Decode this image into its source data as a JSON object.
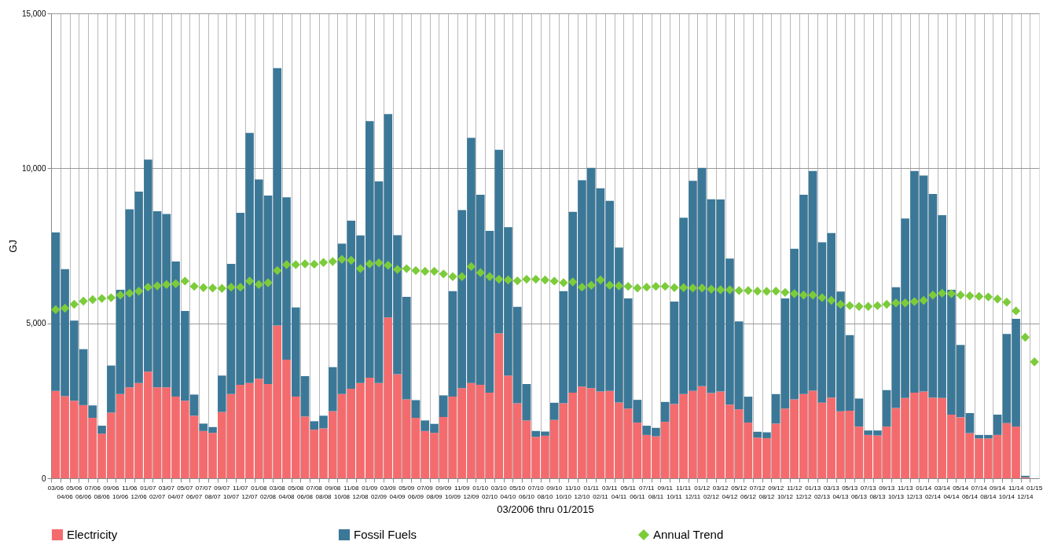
{
  "chart_data": {
    "type": "bar",
    "stacked": true,
    "xlabel": "03/2006 thru 01/2015",
    "ylabel": "GJ",
    "categories": [
      "03/06",
      "04/06",
      "05/06",
      "06/06",
      "07/06",
      "08/06",
      "09/06",
      "10/06",
      "11/06",
      "12/06",
      "01/07",
      "02/07",
      "03/07",
      "04/07",
      "05/07",
      "06/07",
      "07/07",
      "08/07",
      "09/07",
      "10/07",
      "11/07",
      "12/07",
      "01/08",
      "02/08",
      "03/08",
      "04/08",
      "05/08",
      "06/08",
      "07/08",
      "08/08",
      "09/08",
      "10/08",
      "11/08",
      "12/08",
      "01/09",
      "02/09",
      "03/09",
      "04/09",
      "05/09",
      "06/09",
      "07/09",
      "08/09",
      "09/09",
      "10/09",
      "11/09",
      "12/09",
      "01/10",
      "02/10",
      "03/10",
      "04/10",
      "05/10",
      "06/10",
      "07/10",
      "08/10",
      "09/10",
      "10/10",
      "11/10",
      "12/10",
      "01/11",
      "02/11",
      "03/11",
      "04/11",
      "05/11",
      "06/11",
      "07/11",
      "08/11",
      "09/11",
      "10/11",
      "11/11",
      "12/11",
      "01/12",
      "02/12",
      "03/12",
      "04/12",
      "05/12",
      "06/12",
      "07/12",
      "08/12",
      "09/12",
      "10/12",
      "11/12",
      "12/12",
      "01/13",
      "02/13",
      "03/13",
      "04/13",
      "05/13",
      "06/13",
      "07/13",
      "08/13",
      "09/13",
      "10/13",
      "11/13",
      "12/13",
      "01/14",
      "02/14",
      "03/14",
      "04/14",
      "05/14",
      "06/14",
      "07/14",
      "08/14",
      "09/14",
      "10/14",
      "11/14",
      "12/14",
      "01/15"
    ],
    "series": [
      {
        "name": "Electricity",
        "color": "#f46b6e",
        "values": [
          2818,
          2650,
          2504,
          2360,
          1950,
          1440,
          2120,
          2716,
          2930,
          3074,
          3441,
          2930,
          2930,
          2632,
          2504,
          2018,
          1525,
          1465,
          2138,
          2716,
          3015,
          3074,
          3211,
          3040,
          4931,
          3824,
          2632,
          1993,
          1567,
          1610,
          2163,
          2716,
          2887,
          3074,
          3245,
          3074,
          5187,
          3355,
          2547,
          1950,
          1525,
          1465,
          1976,
          2632,
          2905,
          3074,
          3015,
          2759,
          4676,
          3313,
          2419,
          1865,
          1337,
          1371,
          1882,
          2419,
          2759,
          2956,
          2905,
          2802,
          2819,
          2444,
          2248,
          1797,
          1397,
          1354,
          1822,
          2393,
          2716,
          2819,
          2973,
          2750,
          2802,
          2376,
          2223,
          1797,
          1311,
          1294,
          1763,
          2248,
          2547,
          2716,
          2828,
          2436,
          2606,
          2163,
          2180,
          1669,
          1397,
          1380,
          1669,
          2265,
          2589,
          2759,
          2802,
          2606,
          2589,
          2052,
          1967,
          1456,
          1286,
          1286,
          1397,
          1780,
          1669,
          30,
          null
        ]
      },
      {
        "name": "Fossil Fuels",
        "color": "#3b7898",
        "values": [
          5110,
          4095,
          2580,
          1805,
          400,
          255,
          1516,
          3365,
          5749,
          6175,
          6838,
          5688,
          5596,
          4361,
          2896,
          682,
          238,
          187,
          1175,
          4200,
          5552,
          8066,
          6429,
          6081,
          8304,
          5238,
          2879,
          1303,
          273,
          408,
          1422,
          4855,
          5425,
          4762,
          8278,
          6506,
          6566,
          4489,
          3304,
          571,
          340,
          290,
          699,
          3406,
          5748,
          7913,
          6132,
          5221,
          5919,
          4787,
          3109,
          1175,
          188,
          136,
          554,
          3619,
          5834,
          6659,
          7110,
          6557,
          6132,
          4999,
          3552,
          733,
          298,
          273,
          640,
          3305,
          5690,
          6780,
          7042,
          6250,
          6192,
          4710,
          2836,
          835,
          189,
          188,
          953,
          3552,
          4855,
          6431,
          7085,
          5178,
          5307,
          3859,
          2437,
          903,
          144,
          161,
          1175,
          3901,
          5791,
          7154,
          6966,
          6567,
          5902,
          4028,
          2333,
          647,
          111,
          111,
          655,
          2878,
          3474,
          50,
          null
        ]
      },
      {
        "name": "Annual Trend",
        "type": "scatter",
        "marker": "diamond",
        "color": "#7ccc3a",
        "values": [
          5442,
          5485,
          5613,
          5715,
          5766,
          5800,
          5825,
          5910,
          5970,
          6038,
          6166,
          6209,
          6251,
          6277,
          6362,
          6191,
          6150,
          6140,
          6124,
          6166,
          6166,
          6362,
          6251,
          6311,
          6703,
          6890,
          6890,
          6917,
          6907,
          6960,
          6993,
          7061,
          7030,
          6763,
          6917,
          6950,
          6873,
          6737,
          6763,
          6703,
          6677,
          6677,
          6592,
          6507,
          6507,
          6831,
          6635,
          6507,
          6421,
          6396,
          6370,
          6421,
          6421,
          6396,
          6362,
          6311,
          6336,
          6166,
          6225,
          6396,
          6225,
          6209,
          6191,
          6140,
          6166,
          6191,
          6191,
          6150,
          6150,
          6140,
          6140,
          6100,
          6081,
          6081,
          6056,
          6056,
          6038,
          6030,
          6038,
          5996,
          5953,
          5910,
          5910,
          5825,
          5740,
          5613,
          5570,
          5544,
          5544,
          5570,
          5613,
          5655,
          5655,
          5698,
          5740,
          5910,
          5970,
          5953,
          5910,
          5885,
          5868,
          5851,
          5783,
          5681,
          5400,
          4548,
          3756
        ]
      }
    ],
    "ylim": [
      0,
      15000
    ],
    "yticks": [
      0,
      {
        "value": 5000,
        "label": "5,000"
      },
      {
        "value": 10000,
        "label": "10,000"
      },
      {
        "value": 15000,
        "label": "15,000"
      }
    ],
    "grid": true,
    "legend": "bottom"
  }
}
